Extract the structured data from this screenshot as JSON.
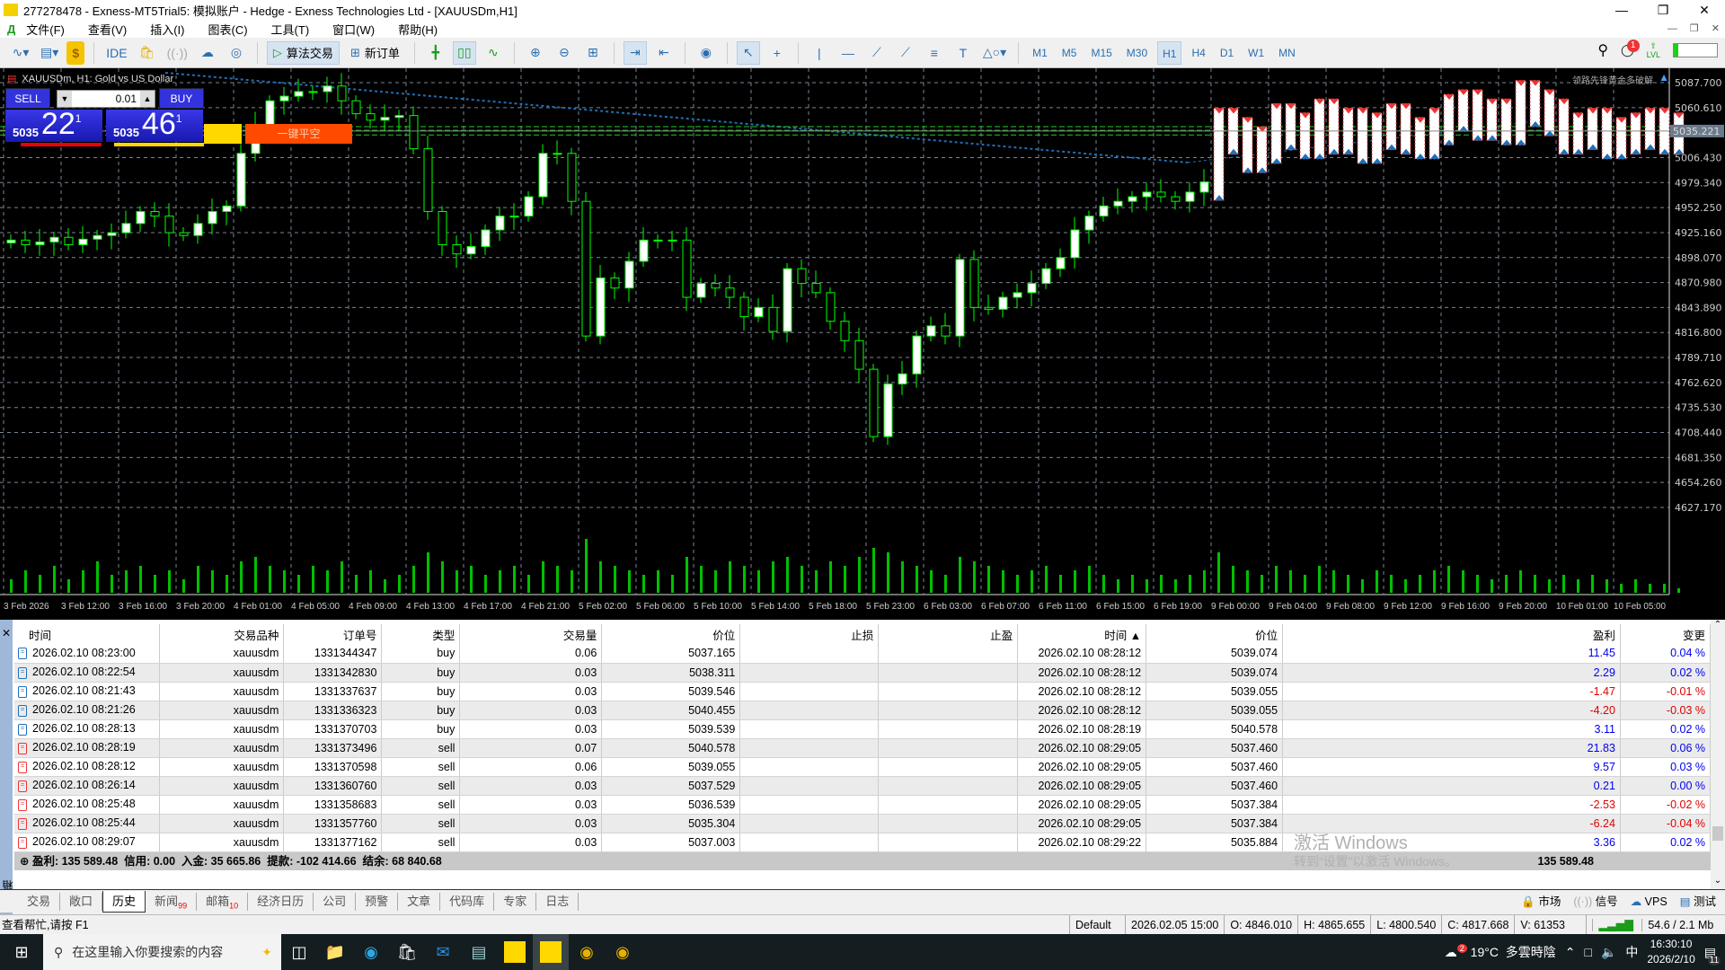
{
  "window": {
    "title": "277278478 - Exness-MT5Trial5: 模拟账户 - Hedge - Exness Technologies Ltd - [XAUUSDm,H1]"
  },
  "menu": [
    "文件(F)",
    "查看(V)",
    "插入(I)",
    "图表(C)",
    "工具(T)",
    "窗口(W)",
    "帮助(H)"
  ],
  "toolbar": {
    "ide": "IDE",
    "algo": "算法交易",
    "new_order": "新订单",
    "timeframes": [
      "M1",
      "M5",
      "M15",
      "M30",
      "H1",
      "H4",
      "D1",
      "W1",
      "MN"
    ],
    "active_tf": "H1",
    "notif_count": "1",
    "lvl": "LVL"
  },
  "chart": {
    "symbol_label": "XAUUSDm, H1:  Gold vs US Dollar",
    "watermark": "领路先锋黄金多破解",
    "one_click": {
      "sell": "SELL",
      "buy": "BUY",
      "lot": "0.01",
      "bid_prefix": "5035",
      "bid_big": "22",
      "bid_sup": "1",
      "ask_prefix": "5035",
      "ask_big": "46",
      "ask_sup": "1",
      "close_short": "一键平空"
    },
    "colors": {
      "bg": "#000000",
      "candle": "#00ff00",
      "bull_body": "#ffffff",
      "grid": "#7a8594",
      "volume": "#00c000",
      "price_tag": "#6c7b8b"
    }
  },
  "chart_data": {
    "type": "candlestick",
    "symbol": "XAUUSDm",
    "timeframe": "H1",
    "price_ticks": [
      "5087.700",
      "5060.610",
      "5006.430",
      "4979.340",
      "4952.250",
      "4925.160",
      "4898.070",
      "4870.980",
      "4843.890",
      "4816.800",
      "4789.710",
      "4762.620",
      "4735.530",
      "4708.440",
      "4681.350",
      "4654.260",
      "4627.170"
    ],
    "current_price": "5035.221",
    "ylim": [
      4620,
      5095
    ],
    "time_labels": [
      "3 Feb 2026",
      "3 Feb 12:00",
      "3 Feb 16:00",
      "3 Feb 20:00",
      "4 Feb 01:00",
      "4 Feb 05:00",
      "4 Feb 09:00",
      "4 Feb 13:00",
      "4 Feb 17:00",
      "4 Feb 21:00",
      "5 Feb 02:00",
      "5 Feb 06:00",
      "5 Feb 10:00",
      "5 Feb 14:00",
      "5 Feb 18:00",
      "5 Feb 23:00",
      "6 Feb 03:00",
      "6 Feb 07:00",
      "6 Feb 11:00",
      "6 Feb 15:00",
      "6 Feb 19:00",
      "9 Feb 00:00",
      "9 Feb 04:00",
      "9 Feb 08:00",
      "9 Feb 12:00",
      "9 Feb 16:00",
      "9 Feb 20:00",
      "10 Feb 01:00",
      "10 Feb 05:00"
    ],
    "closes": [
      4917,
      4912,
      4915,
      4920,
      4912,
      4918,
      4922,
      4925,
      4935,
      4948,
      4943,
      4925,
      4922,
      4935,
      4948,
      4954,
      5011,
      5042,
      5068,
      5073,
      5078,
      5078,
      5084,
      5068,
      5054,
      5047,
      5050,
      5052,
      5016,
      4948,
      4912,
      4902,
      4910,
      4928,
      4943,
      4943,
      4964,
      5011,
      5011,
      4959,
      4813,
      4876,
      4865,
      4894,
      4917,
      4917,
      4917,
      4855,
      4870,
      4865,
      4855,
      4834,
      4844,
      4818,
      4886,
      4870,
      4860,
      4829,
      4808,
      4777,
      4704,
      4761,
      4772,
      4813,
      4824,
      4813,
      4896,
      4844,
      4842,
      4855,
      4860,
      4870,
      4886,
      4898,
      4928,
      4943,
      4954,
      4959,
      4964,
      4969,
      4964,
      4959,
      4969,
      4980,
      5040,
      5030,
      5010,
      5020,
      5045,
      5035,
      5025,
      5050,
      5030,
      5040,
      5020,
      5035,
      5045,
      5030,
      5025,
      5040,
      5055,
      5060,
      5045,
      5050,
      5040,
      5070,
      5060,
      5050,
      5030,
      5035,
      5040,
      5025,
      5030,
      5035,
      5040,
      5030,
      5035
    ],
    "volumes": [
      3,
      5,
      4,
      6,
      3,
      5,
      7,
      4,
      5,
      6,
      4,
      5,
      3,
      6,
      5,
      4,
      7,
      8,
      6,
      5,
      4,
      6,
      5,
      7,
      4,
      5,
      3,
      4,
      6,
      9,
      7,
      5,
      6,
      4,
      5,
      6,
      4,
      7,
      6,
      5,
      12,
      7,
      6,
      5,
      4,
      5,
      4,
      8,
      6,
      5,
      7,
      6,
      5,
      7,
      8,
      6,
      5,
      7,
      6,
      8,
      10,
      9,
      7,
      6,
      5,
      4,
      8,
      7,
      6,
      5,
      4,
      5,
      6,
      4,
      5,
      6,
      4,
      3,
      4,
      3,
      4,
      3,
      4,
      5,
      9,
      6,
      5,
      4,
      6,
      5,
      4,
      6,
      5,
      4,
      3,
      5,
      4,
      3,
      4,
      5,
      6,
      5,
      4,
      3,
      4,
      5,
      4,
      3,
      4,
      3,
      4,
      3,
      2,
      3,
      2,
      2,
      1
    ]
  },
  "history": {
    "columns": [
      "时间",
      "交易品种",
      "订单号",
      "类型",
      "交易量",
      "价位",
      "止损",
      "止盈",
      "时间 ▲",
      "价位",
      "盈利",
      "变更"
    ],
    "rows": [
      [
        "2026.02.10 08:23:00",
        "xauusdm",
        "1331344347",
        "buy",
        "0.06",
        "5037.165",
        "",
        "",
        "2026.02.10 08:28:12",
        "5039.074",
        "11.45",
        "0.04 %"
      ],
      [
        "2026.02.10 08:22:54",
        "xauusdm",
        "1331342830",
        "buy",
        "0.03",
        "5038.311",
        "",
        "",
        "2026.02.10 08:28:12",
        "5039.074",
        "2.29",
        "0.02 %"
      ],
      [
        "2026.02.10 08:21:43",
        "xauusdm",
        "1331337637",
        "buy",
        "0.03",
        "5039.546",
        "",
        "",
        "2026.02.10 08:28:12",
        "5039.055",
        "-1.47",
        "-0.01 %"
      ],
      [
        "2026.02.10 08:21:26",
        "xauusdm",
        "1331336323",
        "buy",
        "0.03",
        "5040.455",
        "",
        "",
        "2026.02.10 08:28:12",
        "5039.055",
        "-4.20",
        "-0.03 %"
      ],
      [
        "2026.02.10 08:28:13",
        "xauusdm",
        "1331370703",
        "buy",
        "0.03",
        "5039.539",
        "",
        "",
        "2026.02.10 08:28:19",
        "5040.578",
        "3.11",
        "0.02 %"
      ],
      [
        "2026.02.10 08:28:19",
        "xauusdm",
        "1331373496",
        "sell",
        "0.07",
        "5040.578",
        "",
        "",
        "2026.02.10 08:29:05",
        "5037.460",
        "21.83",
        "0.06 %"
      ],
      [
        "2026.02.10 08:28:12",
        "xauusdm",
        "1331370598",
        "sell",
        "0.06",
        "5039.055",
        "",
        "",
        "2026.02.10 08:29:05",
        "5037.460",
        "9.57",
        "0.03 %"
      ],
      [
        "2026.02.10 08:26:14",
        "xauusdm",
        "1331360760",
        "sell",
        "0.03",
        "5037.529",
        "",
        "",
        "2026.02.10 08:29:05",
        "5037.460",
        "0.21",
        "0.00 %"
      ],
      [
        "2026.02.10 08:25:48",
        "xauusdm",
        "1331358683",
        "sell",
        "0.03",
        "5036.539",
        "",
        "",
        "2026.02.10 08:29:05",
        "5037.384",
        "-2.53",
        "-0.02 %"
      ],
      [
        "2026.02.10 08:25:44",
        "xauusdm",
        "1331357760",
        "sell",
        "0.03",
        "5035.304",
        "",
        "",
        "2026.02.10 08:29:05",
        "5037.384",
        "-6.24",
        "-0.04 %"
      ],
      [
        "2026.02.10 08:29:07",
        "xauusdm",
        "1331377162",
        "sell",
        "0.03",
        "5037.003",
        "",
        "",
        "2026.02.10 08:29:22",
        "5035.884",
        "3.36",
        "0.02 %"
      ]
    ],
    "summary": "盈利: 135 589.48  信用: 0.00  入金: 35 665.86  提款: -102 414.66  结余: 68 840.68",
    "summary_total": "135 589.48"
  },
  "toolbox_label": "工具箱",
  "activation": {
    "line1": "激活 Windows",
    "line2": "转到“设置”以激活 Windows。"
  },
  "tabs": [
    {
      "label": "交易"
    },
    {
      "label": "敞口"
    },
    {
      "label": "历史",
      "active": true
    },
    {
      "label": "新闻",
      "badge": "99"
    },
    {
      "label": "邮箱",
      "badge": "10"
    },
    {
      "label": "经济日历"
    },
    {
      "label": "公司"
    },
    {
      "label": "预警"
    },
    {
      "label": "文章"
    },
    {
      "label": "代码库"
    },
    {
      "label": "专家"
    },
    {
      "label": "日志"
    }
  ],
  "right_links": [
    "市场",
    "信号",
    "VPS",
    "测试"
  ],
  "status": {
    "help": "查看帮忙,请按 F1",
    "profile": "Default",
    "time": "2026.02.05 15:00",
    "open": "O: 4846.010",
    "high": "H: 4865.655",
    "low": "L: 4800.540",
    "close": "C: 4817.668",
    "volume": "V: 61353",
    "traffic": "54.6 / 2.1 Mb"
  },
  "taskbar": {
    "search_placeholder": "在这里输入你要搜索的内容",
    "weather": "19°C  多雲時陰",
    "weather_badge": "2",
    "ime": "中",
    "time": "16:30:10",
    "date": "2026/2/10",
    "notif": "11"
  }
}
